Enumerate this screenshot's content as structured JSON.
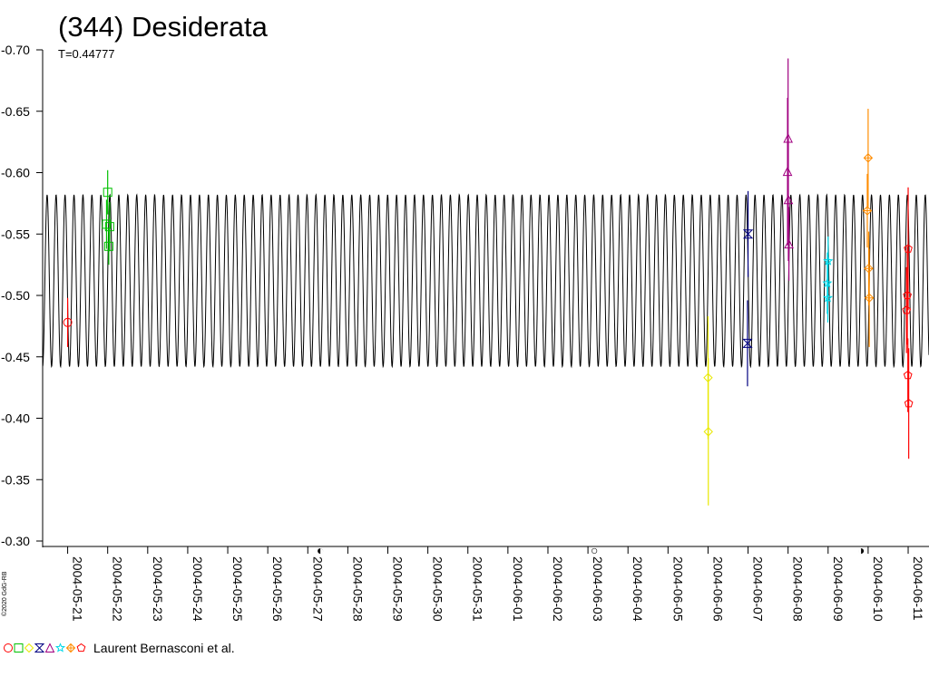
{
  "chart_data": {
    "type": "scatter",
    "title": "(344) Desiderata",
    "subtitle": "T=0.44777",
    "period_days": 0.44777,
    "xlim": [
      "2004-05-20 09:00",
      "2004-06-11 12:30"
    ],
    "ylim": [
      -0.7,
      -0.3
    ],
    "y_ticks": [
      "-0.70",
      "-0.65",
      "-0.60",
      "-0.55",
      "-0.50",
      "-0.45",
      "-0.40",
      "-0.35",
      "-0.30"
    ],
    "x_ticks": [
      "2004-05-21",
      "2004-05-22",
      "2004-05-23",
      "2004-05-24",
      "2004-05-25",
      "2004-05-26",
      "2004-05-27",
      "2004-05-28",
      "2004-05-29",
      "2004-05-30",
      "2004-05-31",
      "2004-06-01",
      "2004-06-02",
      "2004-06-03",
      "2004-06-04",
      "2004-06-05",
      "2004-06-06",
      "2004-06-07",
      "2004-06-08",
      "2004-06-09",
      "2004-06-10",
      "2004-06-11"
    ],
    "model_curve": {
      "min": -0.582,
      "max": -0.442
    },
    "moon_phase_markers": [
      "◐",
      "○",
      "◑"
    ],
    "credit": "Laurent Bernasconi et al.",
    "copyright": "©2020 GdG-RB",
    "series": [
      {
        "marker": "circle",
        "color": "#ff0000",
        "points": [
          {
            "x": "2004-05-21 00:00",
            "y": -0.478,
            "err": 0.02
          }
        ]
      },
      {
        "marker": "square",
        "color": "#00c000",
        "points": [
          {
            "x": "2004-05-22 00:00",
            "y": -0.584,
            "err": 0.018
          },
          {
            "x": "2004-05-21 23:20",
            "y": -0.558,
            "err": 0.02
          },
          {
            "x": "2004-05-22 01:10",
            "y": -0.556,
            "err": 0.02
          },
          {
            "x": "2004-05-22 00:40",
            "y": -0.54,
            "err": 0.015
          }
        ]
      },
      {
        "marker": "diamond",
        "color": "#e8e800",
        "points": [
          {
            "x": "2004-06-06 00:00",
            "y": -0.433,
            "err": 0.05
          },
          {
            "x": "2004-06-06 00:10",
            "y": -0.389,
            "err": 0.06
          }
        ]
      },
      {
        "marker": "hourglass",
        "color": "#000080",
        "points": [
          {
            "x": "2004-06-07 00:00",
            "y": -0.55,
            "err": 0.035
          },
          {
            "x": "2004-06-06 23:40",
            "y": -0.461,
            "err": 0.035
          }
        ]
      },
      {
        "marker": "triangle",
        "color": "#a00080",
        "points": [
          {
            "x": "2004-06-08 00:00",
            "y": -0.628,
            "err": 0.065
          },
          {
            "x": "2004-06-07 23:40",
            "y": -0.601,
            "err": 0.06
          },
          {
            "x": "2004-06-08 00:10",
            "y": -0.578,
            "err": 0.05
          },
          {
            "x": "2004-06-08 00:30",
            "y": -0.542,
            "err": 0.03
          }
        ]
      },
      {
        "marker": "star",
        "color": "#00d8e8",
        "points": [
          {
            "x": "2004-06-09 00:00",
            "y": -0.528,
            "err": 0.02
          },
          {
            "x": "2004-06-08 23:30",
            "y": -0.51,
            "err": 0.025
          },
          {
            "x": "2004-06-08 23:50",
            "y": -0.498,
            "err": 0.02
          }
        ]
      },
      {
        "marker": "diamond-cross",
        "color": "#ff8c00",
        "points": [
          {
            "x": "2004-06-10 00:00",
            "y": -0.612,
            "err": 0.04
          },
          {
            "x": "2004-06-09 23:30",
            "y": -0.569,
            "err": 0.03
          },
          {
            "x": "2004-06-10 00:20",
            "y": -0.522,
            "err": 0.03
          },
          {
            "x": "2004-06-10 00:40",
            "y": -0.498,
            "err": 0.04
          }
        ]
      },
      {
        "marker": "pentagon",
        "color": "#ff0000",
        "points": [
          {
            "x": "2004-06-11 00:00",
            "y": -0.538,
            "err": 0.05
          },
          {
            "x": "2004-06-10 23:30",
            "y": -0.5,
            "err": 0.04
          },
          {
            "x": "2004-06-10 23:00",
            "y": -0.488,
            "err": 0.035
          },
          {
            "x": "2004-06-10 23:50",
            "y": -0.435,
            "err": 0.03
          },
          {
            "x": "2004-06-11 00:20",
            "y": -0.412,
            "err": 0.045
          }
        ]
      }
    ]
  }
}
